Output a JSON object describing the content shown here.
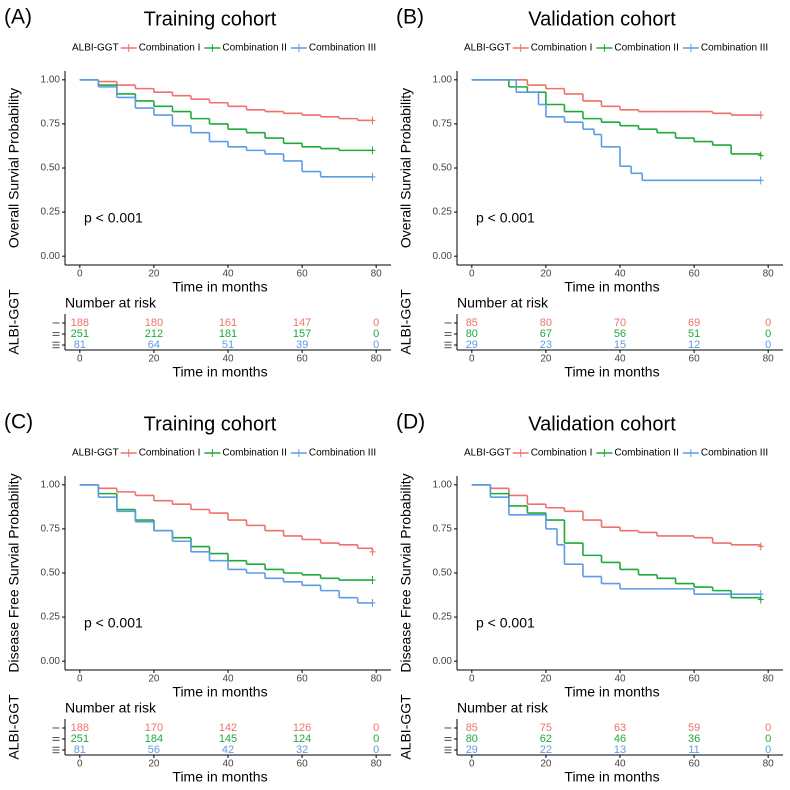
{
  "chart_data": [
    {
      "type": "step",
      "panel_label": "(A)",
      "title": "Training cohort",
      "legend_title": "ALBI-GGT",
      "x_label": "Time in months",
      "y_label": "Overall Survial Probability",
      "annotation": "p < 0.001",
      "xlim": [
        -4,
        84
      ],
      "ylim": [
        -0.05,
        1.05
      ],
      "xticks": [
        0,
        20,
        40,
        60,
        80
      ],
      "yticks": [
        {
          "value": 0,
          "label": "0.00"
        },
        {
          "value": 0.25,
          "label": "0.25"
        },
        {
          "value": 0.5,
          "label": "0.50"
        },
        {
          "value": 0.75,
          "label": "0.75"
        },
        {
          "value": 1,
          "label": "1.00"
        }
      ],
      "series": [
        {
          "name": "Combination I",
          "color": "#F0716B",
          "x": [
            0,
            5,
            10,
            15,
            20,
            25,
            30,
            35,
            40,
            45,
            50,
            55,
            60,
            65,
            70,
            75,
            79
          ],
          "values": [
            1,
            0.99,
            0.97,
            0.95,
            0.93,
            0.91,
            0.89,
            0.87,
            0.85,
            0.83,
            0.82,
            0.81,
            0.8,
            0.79,
            0.78,
            0.77,
            0.77
          ]
        },
        {
          "name": "Combination II",
          "color": "#1DAA3A",
          "x": [
            0,
            5,
            10,
            15,
            20,
            25,
            30,
            35,
            40,
            45,
            50,
            55,
            60,
            65,
            70,
            79
          ],
          "values": [
            1,
            0.97,
            0.92,
            0.88,
            0.85,
            0.82,
            0.78,
            0.75,
            0.72,
            0.7,
            0.67,
            0.64,
            0.62,
            0.61,
            0.6,
            0.6
          ]
        },
        {
          "name": "Combination III",
          "color": "#5C9CE6",
          "x": [
            0,
            5,
            10,
            15,
            20,
            25,
            30,
            35,
            40,
            45,
            50,
            55,
            60,
            65,
            70,
            79
          ],
          "values": [
            1,
            0.96,
            0.9,
            0.84,
            0.8,
            0.74,
            0.7,
            0.65,
            0.62,
            0.6,
            0.58,
            0.54,
            0.48,
            0.45,
            0.45,
            0.45
          ]
        }
      ],
      "risk_table": {
        "title": "Number at risk",
        "y_label": "ALBI-GGT",
        "groups": [
          "I",
          "II",
          "III"
        ],
        "x_label": "Time in months",
        "xticks": [
          0,
          20,
          40,
          60,
          80
        ],
        "rows": [
          [
            188,
            180,
            161,
            147,
            0
          ],
          [
            251,
            212,
            181,
            157,
            0
          ],
          [
            81,
            64,
            51,
            39,
            0
          ]
        ]
      }
    },
    {
      "type": "step",
      "panel_label": "(B)",
      "title": "Validation cohort",
      "legend_title": "ALBI-GGT",
      "x_label": "Time in months",
      "y_label": "Overall Survial Probability",
      "annotation": "p < 0.001",
      "xlim": [
        -4,
        84
      ],
      "ylim": [
        -0.05,
        1.05
      ],
      "xticks": [
        0,
        20,
        40,
        60,
        80
      ],
      "yticks": [
        {
          "value": 0,
          "label": "0.00"
        },
        {
          "value": 0.25,
          "label": "0.25"
        },
        {
          "value": 0.5,
          "label": "0.50"
        },
        {
          "value": 0.75,
          "label": "0.75"
        },
        {
          "value": 1,
          "label": "1.00"
        }
      ],
      "series": [
        {
          "name": "Combination I",
          "color": "#F0716B",
          "x": [
            0,
            10,
            15,
            20,
            25,
            30,
            35,
            40,
            45,
            50,
            60,
            65,
            70,
            78
          ],
          "values": [
            1,
            1,
            0.97,
            0.95,
            0.92,
            0.88,
            0.85,
            0.83,
            0.82,
            0.82,
            0.82,
            0.81,
            0.8,
            0.8
          ]
        },
        {
          "name": "Combination II",
          "color": "#1DAA3A",
          "x": [
            0,
            5,
            10,
            15,
            20,
            25,
            30,
            35,
            40,
            45,
            50,
            55,
            60,
            65,
            70,
            78
          ],
          "values": [
            1,
            1,
            0.96,
            0.93,
            0.86,
            0.82,
            0.78,
            0.76,
            0.74,
            0.72,
            0.7,
            0.67,
            0.65,
            0.63,
            0.58,
            0.57
          ]
        },
        {
          "name": "Combination III",
          "color": "#5C9CE6",
          "x": [
            0,
            8,
            12,
            18,
            20,
            25,
            30,
            33,
            35,
            40,
            43,
            46,
            60,
            70,
            78
          ],
          "values": [
            1,
            1,
            0.93,
            0.86,
            0.79,
            0.76,
            0.72,
            0.69,
            0.62,
            0.51,
            0.47,
            0.43,
            0.43,
            0.43,
            0.43
          ]
        }
      ],
      "risk_table": {
        "title": "Number at risk",
        "y_label": "ALBI-GGT",
        "groups": [
          "I",
          "II",
          "III"
        ],
        "x_label": "Time in months",
        "xticks": [
          0,
          20,
          40,
          60,
          80
        ],
        "rows": [
          [
            85,
            80,
            70,
            69,
            0
          ],
          [
            80,
            67,
            56,
            51,
            0
          ],
          [
            29,
            23,
            15,
            12,
            0
          ]
        ]
      }
    },
    {
      "type": "step",
      "panel_label": "(C)",
      "title": "Training cohort",
      "legend_title": "ALBI-GGT",
      "x_label": "Time in months",
      "y_label": "Disease Free Survial Probability",
      "annotation": "p < 0.001",
      "xlim": [
        -4,
        84
      ],
      "ylim": [
        -0.05,
        1.05
      ],
      "xticks": [
        0,
        20,
        40,
        60,
        80
      ],
      "yticks": [
        {
          "value": 0,
          "label": "0.00"
        },
        {
          "value": 0.25,
          "label": "0.25"
        },
        {
          "value": 0.5,
          "label": "0.50"
        },
        {
          "value": 0.75,
          "label": "0.75"
        },
        {
          "value": 1,
          "label": "1.00"
        }
      ],
      "series": [
        {
          "name": "Combination I",
          "color": "#F0716B",
          "x": [
            0,
            5,
            10,
            15,
            20,
            25,
            30,
            35,
            40,
            45,
            50,
            55,
            60,
            65,
            70,
            75,
            79
          ],
          "values": [
            1,
            0.98,
            0.96,
            0.94,
            0.91,
            0.89,
            0.86,
            0.84,
            0.8,
            0.77,
            0.74,
            0.71,
            0.69,
            0.67,
            0.66,
            0.64,
            0.62
          ]
        },
        {
          "name": "Combination II",
          "color": "#1DAA3A",
          "x": [
            0,
            5,
            10,
            15,
            20,
            25,
            30,
            35,
            40,
            45,
            50,
            55,
            60,
            65,
            70,
            79
          ],
          "values": [
            1,
            0.95,
            0.86,
            0.8,
            0.74,
            0.7,
            0.65,
            0.61,
            0.57,
            0.55,
            0.52,
            0.5,
            0.49,
            0.47,
            0.46,
            0.46
          ]
        },
        {
          "name": "Combination III",
          "color": "#5C9CE6",
          "x": [
            0,
            5,
            10,
            15,
            20,
            25,
            30,
            35,
            40,
            45,
            50,
            55,
            60,
            65,
            70,
            75,
            79
          ],
          "values": [
            1,
            0.93,
            0.85,
            0.79,
            0.74,
            0.68,
            0.62,
            0.57,
            0.52,
            0.5,
            0.47,
            0.45,
            0.43,
            0.4,
            0.36,
            0.33,
            0.33
          ]
        }
      ],
      "risk_table": {
        "title": "Number at risk",
        "y_label": "ALBI-GGT",
        "groups": [
          "I",
          "II",
          "III"
        ],
        "x_label": "Time in months",
        "xticks": [
          0,
          20,
          40,
          60,
          80
        ],
        "rows": [
          [
            188,
            170,
            142,
            126,
            0
          ],
          [
            251,
            184,
            145,
            124,
            0
          ],
          [
            81,
            56,
            42,
            32,
            0
          ]
        ]
      }
    },
    {
      "type": "step",
      "panel_label": "(D)",
      "title": "Validation cohort",
      "legend_title": "ALBI-GGT",
      "x_label": "Time in months",
      "y_label": "Disease Free Survial Probability",
      "annotation": "p < 0.001",
      "xlim": [
        -4,
        84
      ],
      "ylim": [
        -0.05,
        1.05
      ],
      "xticks": [
        0,
        20,
        40,
        60,
        80
      ],
      "yticks": [
        {
          "value": 0,
          "label": "0.00"
        },
        {
          "value": 0.25,
          "label": "0.25"
        },
        {
          "value": 0.5,
          "label": "0.50"
        },
        {
          "value": 0.75,
          "label": "0.75"
        },
        {
          "value": 1,
          "label": "1.00"
        }
      ],
      "series": [
        {
          "name": "Combination I",
          "color": "#F0716B",
          "x": [
            0,
            5,
            10,
            15,
            20,
            25,
            30,
            35,
            40,
            45,
            50,
            55,
            60,
            65,
            70,
            78
          ],
          "values": [
            1,
            0.98,
            0.94,
            0.89,
            0.87,
            0.85,
            0.8,
            0.76,
            0.74,
            0.73,
            0.71,
            0.71,
            0.7,
            0.67,
            0.66,
            0.65
          ]
        },
        {
          "name": "Combination II",
          "color": "#1DAA3A",
          "x": [
            0,
            5,
            10,
            15,
            20,
            25,
            30,
            35,
            40,
            45,
            50,
            55,
            60,
            65,
            70,
            78
          ],
          "values": [
            1,
            0.95,
            0.88,
            0.84,
            0.8,
            0.67,
            0.6,
            0.56,
            0.52,
            0.49,
            0.47,
            0.44,
            0.42,
            0.4,
            0.36,
            0.35
          ]
        },
        {
          "name": "Combination III",
          "color": "#5C9CE6",
          "x": [
            0,
            5,
            10,
            15,
            20,
            23,
            25,
            30,
            35,
            40,
            50,
            60,
            70,
            75,
            78
          ],
          "values": [
            1,
            0.93,
            0.83,
            0.83,
            0.75,
            0.66,
            0.55,
            0.48,
            0.44,
            0.41,
            0.41,
            0.38,
            0.38,
            0.38,
            0.38
          ]
        }
      ],
      "risk_table": {
        "title": "Number at risk",
        "y_label": "ALBI-GGT",
        "groups": [
          "I",
          "II",
          "III"
        ],
        "x_label": "Time in months",
        "xticks": [
          0,
          20,
          40,
          60,
          80
        ],
        "rows": [
          [
            85,
            75,
            63,
            59,
            0
          ],
          [
            80,
            62,
            46,
            36,
            0
          ],
          [
            29,
            22,
            13,
            11,
            0
          ]
        ]
      }
    }
  ]
}
